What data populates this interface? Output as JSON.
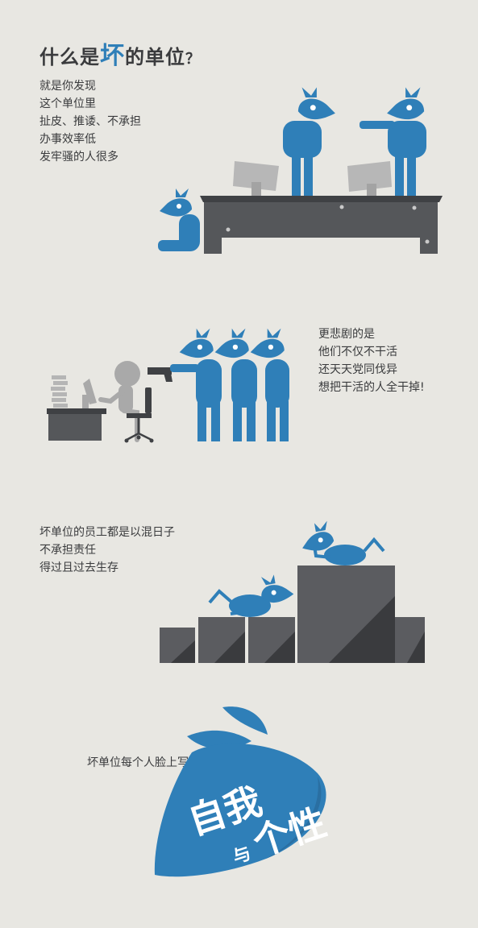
{
  "heading": {
    "prefix": "什么是",
    "highlight": "坏",
    "suffix": "的单位",
    "question_mark": "？"
  },
  "section1": {
    "lines": [
      "就是你发现",
      "这个单位里",
      "扯皮、推诿、不承担",
      "办事效率低",
      "发牢骚的人很多"
    ]
  },
  "section2": {
    "lines": [
      "更悲剧的是",
      "他们不仅不干活",
      "还天天党同伐异",
      "想把干活的人全干掉!"
    ]
  },
  "section3": {
    "lines": [
      "坏单位的员工都是以混日子",
      "不承担责任",
      "得过且过去生存"
    ]
  },
  "section4": {
    "caption": "坏单位每个人脸上写着",
    "mango_text_line1": "自我",
    "mango_text_small": "与",
    "mango_text_line2": "个性"
  },
  "colors": {
    "background": "#e8e7e2",
    "accent_blue": "#2f7fb8",
    "dark_gray": "#4b4c4f",
    "light_gray": "#a9a9a9",
    "text": "#3a3b3d"
  }
}
